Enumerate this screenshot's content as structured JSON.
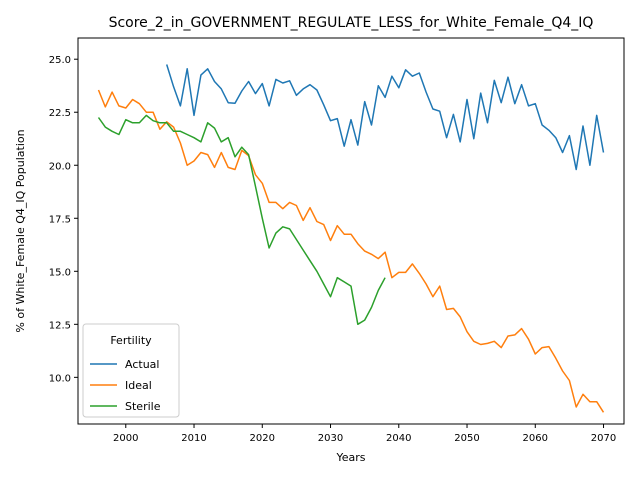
{
  "chart_data": {
    "type": "line",
    "title": "Score_2_in_GOVERNMENT_REGULATE_LESS_for_White_Female_Q4_IQ",
    "xlabel": "Years",
    "ylabel": "% of White_Female Q4_IQ Population",
    "xlim": [
      1993,
      2073
    ],
    "ylim": [
      7.8,
      26.0
    ],
    "xticks": [
      2000,
      2010,
      2020,
      2030,
      2040,
      2050,
      2060,
      2070
    ],
    "yticks": [
      10.0,
      12.5,
      15.0,
      17.5,
      20.0,
      22.5,
      25.0
    ],
    "ytick_labels": [
      "10.0",
      "12.5",
      "15.0",
      "17.5",
      "20.0",
      "22.5",
      "25.0"
    ],
    "grid": false,
    "legend": {
      "title": "Fertility",
      "placement": "lower-left"
    },
    "series": [
      {
        "name": "Actual",
        "color": "#1f77b4",
        "x": [
          2006,
          2007,
          2008,
          2009,
          2010,
          2011,
          2012,
          2013,
          2014,
          2015,
          2016,
          2017,
          2018,
          2019,
          2020,
          2021,
          2022,
          2023,
          2024,
          2025,
          2026,
          2027,
          2028,
          2029,
          2030,
          2031,
          2032,
          2033,
          2034,
          2035,
          2036,
          2037,
          2038,
          2039,
          2040,
          2041,
          2042,
          2043,
          2044,
          2045,
          2046,
          2047,
          2048,
          2049,
          2050,
          2051,
          2052,
          2053,
          2054,
          2055,
          2056,
          2057,
          2058,
          2059,
          2060,
          2061,
          2062,
          2063,
          2064,
          2065,
          2066,
          2067,
          2068,
          2069,
          2070
        ],
        "values": [
          24.75,
          23.7,
          22.8,
          24.55,
          22.35,
          24.25,
          24.55,
          23.95,
          23.6,
          22.95,
          22.92,
          23.5,
          23.95,
          23.38,
          23.85,
          22.8,
          24.05,
          23.88,
          23.98,
          23.3,
          23.6,
          23.8,
          23.55,
          22.85,
          22.1,
          22.2,
          20.9,
          22.15,
          20.95,
          23.0,
          21.9,
          23.75,
          23.2,
          24.2,
          23.65,
          24.5,
          24.2,
          24.35,
          23.45,
          22.65,
          22.55,
          21.3,
          22.4,
          21.1,
          23.1,
          21.25,
          23.4,
          22.0,
          24.0,
          22.95,
          24.15,
          22.9,
          23.8,
          22.8,
          22.9,
          21.9,
          21.65,
          21.3,
          20.6,
          21.4,
          19.8,
          21.85,
          20.0,
          22.35,
          20.6
        ]
      },
      {
        "name": "Ideal",
        "color": "#ff7f0e",
        "x": [
          1996,
          1997,
          1998,
          1999,
          2000,
          2001,
          2002,
          2003,
          2004,
          2005,
          2006,
          2007,
          2008,
          2009,
          2010,
          2011,
          2012,
          2013,
          2014,
          2015,
          2016,
          2017,
          2018,
          2019,
          2020,
          2021,
          2022,
          2023,
          2024,
          2025,
          2026,
          2027,
          2028,
          2029,
          2030,
          2031,
          2032,
          2033,
          2034,
          2035,
          2036,
          2037,
          2038,
          2039,
          2040,
          2041,
          2042,
          2043,
          2044,
          2045,
          2046,
          2047,
          2048,
          2049,
          2050,
          2051,
          2052,
          2053,
          2054,
          2055,
          2056,
          2057,
          2058,
          2059,
          2060,
          2061,
          2062,
          2063,
          2064,
          2065,
          2066,
          2067,
          2068,
          2069,
          2070
        ],
        "values": [
          23.55,
          22.75,
          23.45,
          22.8,
          22.7,
          23.1,
          22.9,
          22.5,
          22.5,
          21.7,
          22.05,
          21.8,
          21.05,
          20.0,
          20.2,
          20.6,
          20.5,
          19.9,
          20.6,
          19.9,
          19.8,
          20.7,
          20.45,
          19.55,
          19.15,
          18.25,
          18.25,
          17.95,
          18.25,
          18.1,
          17.4,
          18.0,
          17.35,
          17.2,
          16.45,
          17.15,
          16.75,
          16.75,
          16.3,
          15.95,
          15.8,
          15.6,
          15.9,
          14.7,
          14.95,
          14.95,
          15.35,
          14.9,
          14.4,
          13.8,
          14.3,
          13.2,
          13.25,
          12.85,
          12.15,
          11.7,
          11.55,
          11.6,
          11.7,
          11.4,
          11.95,
          12.0,
          12.3,
          11.8,
          11.1,
          11.4,
          11.45,
          10.9,
          10.3,
          9.85,
          8.6,
          9.2,
          8.85,
          8.85,
          8.35
        ]
      },
      {
        "name": "Sterile",
        "color": "#2ca02c",
        "x": [
          1996,
          1997,
          1998,
          1999,
          2000,
          2001,
          2002,
          2003,
          2004,
          2005,
          2006,
          2007,
          2008,
          2009,
          2010,
          2011,
          2012,
          2013,
          2014,
          2015,
          2016,
          2017,
          2018,
          2019,
          2020,
          2021,
          2022,
          2023,
          2024,
          2025,
          2026,
          2027,
          2028,
          2029,
          2030,
          2031,
          2032,
          2033,
          2034,
          2035,
          2036,
          2037,
          2038
        ],
        "values": [
          22.25,
          21.8,
          21.6,
          21.45,
          22.15,
          22.0,
          22.0,
          22.35,
          22.1,
          22.0,
          22.0,
          21.6,
          21.6,
          21.45,
          21.3,
          21.1,
          22.0,
          21.75,
          21.1,
          21.3,
          20.4,
          20.85,
          20.5,
          19.0,
          17.5,
          16.1,
          16.8,
          17.1,
          17.0,
          16.5,
          16.0,
          15.5,
          15.0,
          14.4,
          13.8,
          14.7,
          14.5,
          14.3,
          12.5,
          12.7,
          13.3,
          14.1,
          14.7
        ]
      }
    ]
  }
}
